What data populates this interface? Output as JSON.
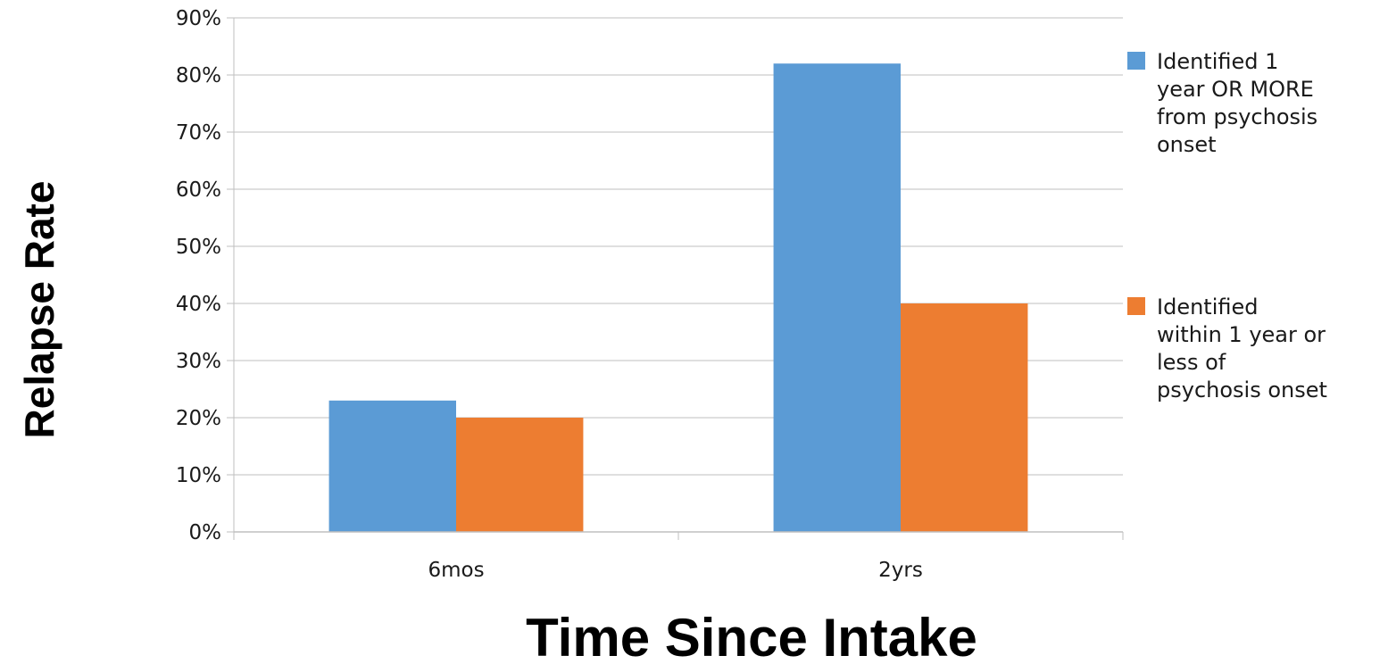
{
  "chart_data": {
    "type": "bar",
    "title": "",
    "xlabel": "Time Since Intake",
    "ylabel": "Relapse Rate",
    "categories": [
      "6mos",
      "2yrs"
    ],
    "series": [
      {
        "name": "Identified 1 year OR MORE from psychosis onset",
        "legend_lines": [
          "Identified 1",
          "year OR MORE",
          "from psychosis",
          "onset"
        ],
        "color": "#5b9bd5",
        "values": [
          0.23,
          0.82
        ]
      },
      {
        "name": "Identified within 1 year or less of psychosis onset",
        "legend_lines": [
          "Identified",
          "within 1 year or",
          "less of",
          "psychosis onset"
        ],
        "color": "#ed7d31",
        "values": [
          0.2,
          0.4
        ]
      }
    ],
    "ylim": [
      0,
      0.9
    ],
    "yticks": [
      0,
      0.1,
      0.2,
      0.3,
      0.4,
      0.5,
      0.6,
      0.7,
      0.8,
      0.9
    ],
    "ytick_labels": [
      "0%",
      "10%",
      "20%",
      "30%",
      "40%",
      "50%",
      "60%",
      "70%",
      "80%",
      "90%"
    ],
    "grid": true,
    "legend_position": "right"
  }
}
